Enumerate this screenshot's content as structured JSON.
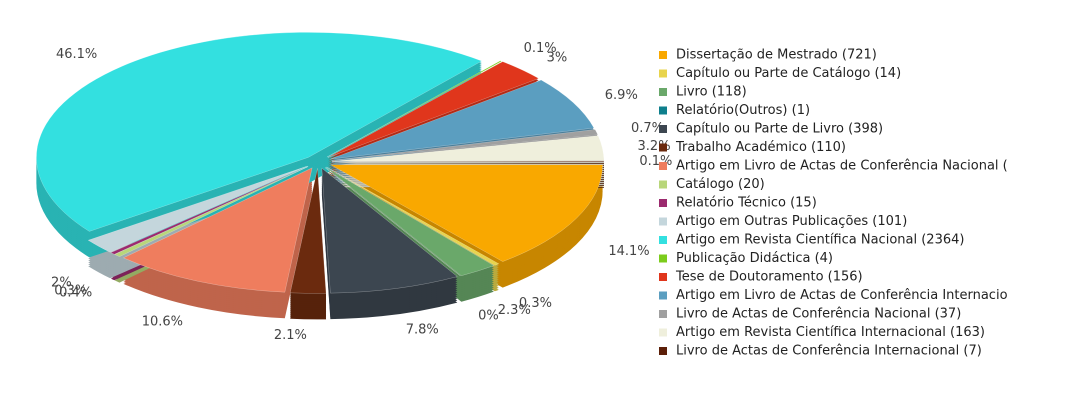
{
  "chart_data": {
    "type": "pie",
    "labels": [
      "Dissertação de Mestrado (721)",
      "Capítulo ou Parte de Catálogo (14)",
      "Livro (118)",
      "Relatório(Outros) (1)",
      "Capítulo ou Parte de Livro (398)",
      "Trabalho Académico (110)",
      "Artigo em Livro de Actas de Conferência Nacional (",
      "Catálogo (20)",
      "Relatório Técnico (15)",
      "Artigo em Outras Publicações (101)",
      "Artigo em Revista Científica Nacional (2364)",
      "Publicação Didáctica (4)",
      "Tese de Doutoramento (156)",
      "Artigo em Livro de Actas de Conferência Internacio",
      "Livro de Actas de Conferência Nacional (37)",
      "Artigo em Revista Científica Internacional (163)",
      "Livro de Actas de Conferência Internacional (7)"
    ],
    "values": [
      14.1,
      0.3,
      2.3,
      0,
      7.8,
      2.1,
      10.6,
      0.4,
      0.3,
      2,
      46.1,
      0.1,
      3,
      6.9,
      0.7,
      3.2,
      0.1
    ],
    "value_labels": [
      "14.1%",
      "0.3%",
      "2.3%",
      "0%",
      "7.8%",
      "2.1%",
      "10.6%",
      "0.4%",
      "0.3%",
      "2%",
      "46.1%",
      "0.1%",
      "3%",
      "6.9%",
      "0.7%",
      "3.2%",
      "0.1%"
    ],
    "colors": [
      "#f9a800",
      "#e8d44d",
      "#6aa86a",
      "#0e7f8c",
      "#3c4650",
      "#6b2a0e",
      "#ef7d5e",
      "#b8d67a",
      "#9b2a6e",
      "#c4d6dc",
      "#33e0e0",
      "#7ccc1c",
      "#e0361c",
      "#5b9ec0",
      "#a0a0a0",
      "#efefdc",
      "#5c1f08"
    ],
    "legend": "right"
  }
}
